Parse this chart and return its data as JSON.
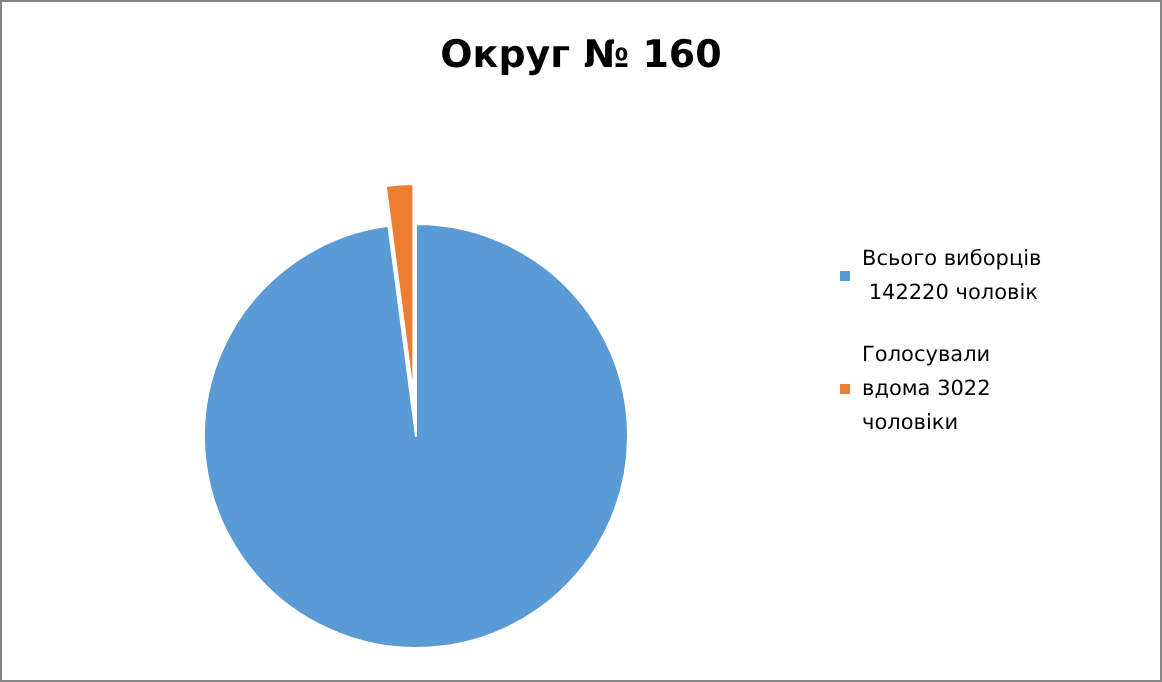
{
  "chart_data": {
    "type": "pie",
    "title": "Округ № 160",
    "categories": [
      "Всього виборців  142220 чоловік",
      "Голосували вдома 3022 чоловіки"
    ],
    "values": [
      142220,
      3022
    ],
    "colors": [
      "#5b9bd5",
      "#ed7d31"
    ],
    "legend": "right"
  }
}
